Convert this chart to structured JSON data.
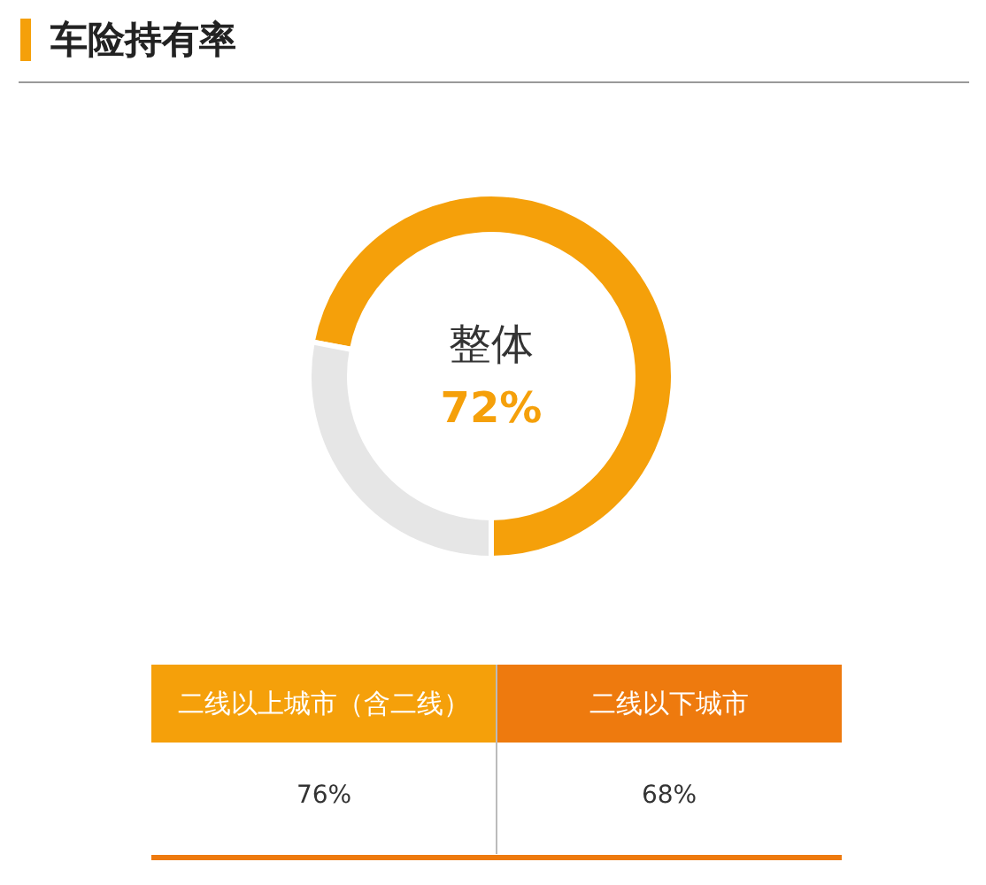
{
  "chart_data": [
    {
      "type": "donut",
      "title": "车险持有率",
      "categories": [
        "整体",
        null
      ],
      "values": [
        72,
        28
      ],
      "colors": [
        "#f5a00a",
        "#e6e6e6"
      ],
      "value_labels": [
        "72%",
        null
      ]
    },
    {
      "type": "other",
      "categories": [
        "二线以上城市（含二线）",
        "二线以下城市"
      ],
      "values": [
        76,
        68
      ],
      "value_labels": [
        "76%",
        "68%"
      ]
    }
  ]
}
